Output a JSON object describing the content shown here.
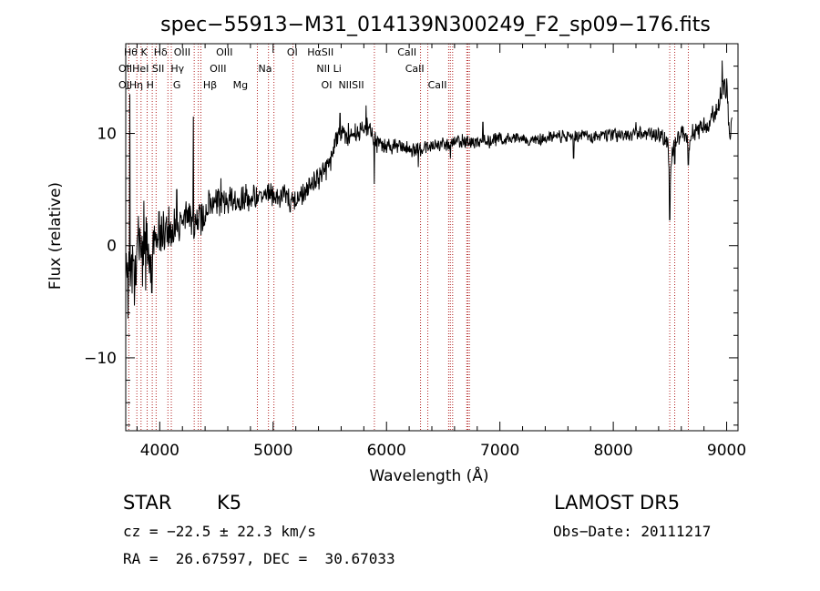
{
  "chart_data": {
    "type": "line",
    "title": "spec−55913−M31_014139N300249_F2_sp09−176.fits",
    "xlabel": "Wavelength (Å)",
    "ylabel": "Flux (relative)",
    "xlim": [
      3700,
      9100
    ],
    "ylim": [
      -16.5,
      18
    ],
    "xticks": [
      {
        "value": 4000,
        "label": "4000"
      },
      {
        "value": 5000,
        "label": "5000"
      },
      {
        "value": 6000,
        "label": "6000"
      },
      {
        "value": 7000,
        "label": "7000"
      },
      {
        "value": 8000,
        "label": "8000"
      },
      {
        "value": 9000,
        "label": "9000"
      }
    ],
    "yticks": [
      {
        "value": -10,
        "label": "−10"
      },
      {
        "value": 0,
        "label": "0"
      },
      {
        "value": 10,
        "label": "10"
      }
    ],
    "line_color": "#000000",
    "marker_color": "#b22222",
    "series": [
      {
        "anchors": [
          [
            3700,
            0.5
          ],
          [
            3725,
            -1
          ],
          [
            3745,
            -4
          ],
          [
            3760,
            -1
          ],
          [
            3780,
            -3
          ],
          [
            3800,
            0.5
          ],
          [
            3830,
            0
          ],
          [
            3850,
            -2
          ],
          [
            3880,
            1
          ],
          [
            3900,
            -0.5
          ],
          [
            3920,
            -2.5
          ],
          [
            3935,
            -1
          ],
          [
            3950,
            1
          ],
          [
            3970,
            0.5
          ],
          [
            4000,
            1.5
          ],
          [
            4050,
            1
          ],
          [
            4100,
            1.2
          ],
          [
            4150,
            2
          ],
          [
            4200,
            2.2
          ],
          [
            4260,
            2.8
          ],
          [
            4300,
            1.5
          ],
          [
            4330,
            2.6
          ],
          [
            4380,
            2.2
          ],
          [
            4420,
            3.5
          ],
          [
            4500,
            4
          ],
          [
            4600,
            4.2
          ],
          [
            4700,
            4
          ],
          [
            4800,
            4.2
          ],
          [
            4900,
            4.4
          ],
          [
            4950,
            4.8
          ],
          [
            5000,
            4.3
          ],
          [
            5100,
            4.6
          ],
          [
            5180,
            3.8
          ],
          [
            5250,
            4.6
          ],
          [
            5350,
            5.5
          ],
          [
            5450,
            6.5
          ],
          [
            5500,
            7.4
          ],
          [
            5550,
            9.5
          ],
          [
            5600,
            10
          ],
          [
            5700,
            9.8
          ],
          [
            5800,
            10.3
          ],
          [
            5850,
            10.8
          ],
          [
            5890,
            9.4
          ],
          [
            5920,
            9
          ],
          [
            6000,
            9
          ],
          [
            6100,
            8.8
          ],
          [
            6200,
            8.6
          ],
          [
            6300,
            8.7
          ],
          [
            6400,
            8.9
          ],
          [
            6500,
            9.1
          ],
          [
            6560,
            8.7
          ],
          [
            6600,
            9.4
          ],
          [
            6700,
            9.3
          ],
          [
            6800,
            9.2
          ],
          [
            6900,
            9.3
          ],
          [
            7000,
            9.5
          ],
          [
            7100,
            9.6
          ],
          [
            7200,
            9.5
          ],
          [
            7300,
            9.4
          ],
          [
            7400,
            9.6
          ],
          [
            7500,
            9.7
          ],
          [
            7600,
            9.7
          ],
          [
            7700,
            9.8
          ],
          [
            7800,
            9.7
          ],
          [
            7900,
            9.8
          ],
          [
            8000,
            9.9
          ],
          [
            8100,
            9.8
          ],
          [
            8200,
            9.9
          ],
          [
            8300,
            10
          ],
          [
            8400,
            9.9
          ],
          [
            8480,
            9.3
          ],
          [
            8500,
            5.5
          ],
          [
            8520,
            8.5
          ],
          [
            8560,
            9.5
          ],
          [
            8600,
            10
          ],
          [
            8640,
            9.6
          ],
          [
            8665,
            8.8
          ],
          [
            8700,
            10
          ],
          [
            8800,
            10.7
          ],
          [
            8850,
            11.2
          ],
          [
            8900,
            11.6
          ],
          [
            8950,
            13.5
          ],
          [
            9000,
            14.7
          ],
          [
            9020,
            11
          ],
          [
            9050,
            10.2
          ]
        ],
        "noise": [
          [
            3700,
            2.6
          ],
          [
            4000,
            1.6
          ],
          [
            4300,
            1.3
          ],
          [
            5000,
            0.9
          ],
          [
            5500,
            0.9
          ],
          [
            5850,
            0.9
          ],
          [
            6000,
            0.7
          ],
          [
            7000,
            0.5
          ],
          [
            8000,
            0.5
          ],
          [
            8800,
            0.8
          ],
          [
            9050,
            1.3
          ]
        ],
        "spikes": [
          [
            3720,
            -6.5
          ],
          [
            3735,
            13.5
          ],
          [
            3790,
            -3.5
          ],
          [
            3860,
            4
          ],
          [
            3875,
            -4
          ],
          [
            3930,
            -4.2
          ],
          [
            4080,
            3.5
          ],
          [
            4150,
            5
          ],
          [
            4295,
            11.5
          ],
          [
            4305,
            0.8
          ],
          [
            4540,
            6
          ],
          [
            4760,
            5.5
          ],
          [
            5150,
            3
          ],
          [
            5590,
            11.8
          ],
          [
            5820,
            12.5
          ],
          [
            5893,
            5.5
          ],
          [
            6280,
            7
          ],
          [
            6563,
            7.8
          ],
          [
            6850,
            11
          ],
          [
            7650,
            7.8
          ],
          [
            8200,
            11
          ],
          [
            8498,
            2.3
          ],
          [
            8542,
            7.3
          ],
          [
            8662,
            7.2
          ],
          [
            8960,
            16.5
          ]
        ]
      }
    ],
    "marker_rows": [
      "Hθ K  Hδ  OIII        OIII                 OI   HαSII                    CaII",
      "OIIHeI SII  Hγ        OIII          Na              NII Li                    CaII",
      "OIHη H      G       Hβ     Mg                       OI  NIISII                    CaII"
    ],
    "markers": [
      {
        "label": "Hθ",
        "x": 3798,
        "row": 0
      },
      {
        "label": "K",
        "x": 3934,
        "row": 0
      },
      {
        "label": "Hδ",
        "x": 4102,
        "row": 0
      },
      {
        "label": "OIII",
        "x": 4363,
        "row": 0
      },
      {
        "label": "OIII",
        "x": 5007,
        "row": 0
      },
      {
        "label": "OI",
        "x": 6300,
        "row": 0
      },
      {
        "label": "Hα",
        "x": 6563,
        "row": 0
      },
      {
        "label": "SII",
        "x": 6717,
        "row": 0
      },
      {
        "label": "CaII",
        "x": 8542,
        "row": 0
      },
      {
        "label": "OII",
        "x": 3727,
        "row": 1
      },
      {
        "label": "HeI",
        "x": 3889,
        "row": 1
      },
      {
        "label": "SII",
        "x": 4072,
        "row": 1
      },
      {
        "label": "Hγ",
        "x": 4340,
        "row": 1
      },
      {
        "label": "OIII",
        "x": 4959,
        "row": 1
      },
      {
        "label": "Na",
        "x": 5893,
        "row": 1
      },
      {
        "label": "NII",
        "x": 6548,
        "row": 1
      },
      {
        "label": "Li",
        "x": 6708,
        "row": 1
      },
      {
        "label": "CaII",
        "x": 8498,
        "row": 1
      },
      {
        "label": "OI",
        "x": 3727,
        "row": 2
      },
      {
        "label": "Hη",
        "x": 3835,
        "row": 2
      },
      {
        "label": "H",
        "x": 3968,
        "row": 2
      },
      {
        "label": "G",
        "x": 4304,
        "row": 2
      },
      {
        "label": "Hβ",
        "x": 4861,
        "row": 2
      },
      {
        "label": "Mg",
        "x": 5175,
        "row": 2
      },
      {
        "label": "OI",
        "x": 6364,
        "row": 2
      },
      {
        "label": "NII",
        "x": 6583,
        "row": 2
      },
      {
        "label": "SII",
        "x": 6731,
        "row": 2
      },
      {
        "label": "CaII",
        "x": 8662,
        "row": 2
      }
    ]
  },
  "info": {
    "class": "STAR",
    "subclass": "K5",
    "survey": "LAMOST DR5",
    "cz": "cz = −22.5 ± 22.3 km/s",
    "obs_date": "Obs−Date: 20111217",
    "coords": "RA =  26.67597, DEC =  30.67033"
  }
}
